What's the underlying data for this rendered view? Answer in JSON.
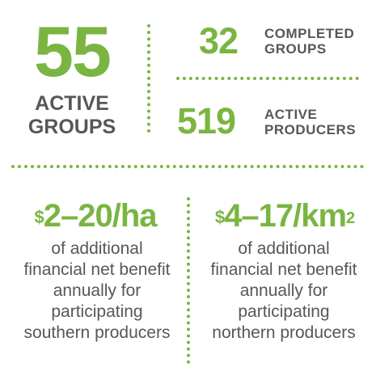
{
  "active_groups": {
    "number": "55",
    "label": "ACTIVE GROUPS"
  },
  "completed_groups": {
    "number": "32",
    "label_line1": "COMPLETED",
    "label_line2": "GROUPS"
  },
  "active_producers": {
    "number": "519",
    "label_line1": "ACTIVE",
    "label_line2": "PRODUCERS"
  },
  "southern": {
    "currency": "$",
    "rate": "2–20/ha",
    "description": "of additional financial net benefit annually for participating southern producers"
  },
  "northern": {
    "currency": "$",
    "rate": "4–17/km",
    "superscript": "2",
    "description": "of additional financial net benefit annually for participating northern producers"
  },
  "colors": {
    "accent": "#7ab542",
    "text": "#55575a",
    "background": "#ffffff"
  }
}
